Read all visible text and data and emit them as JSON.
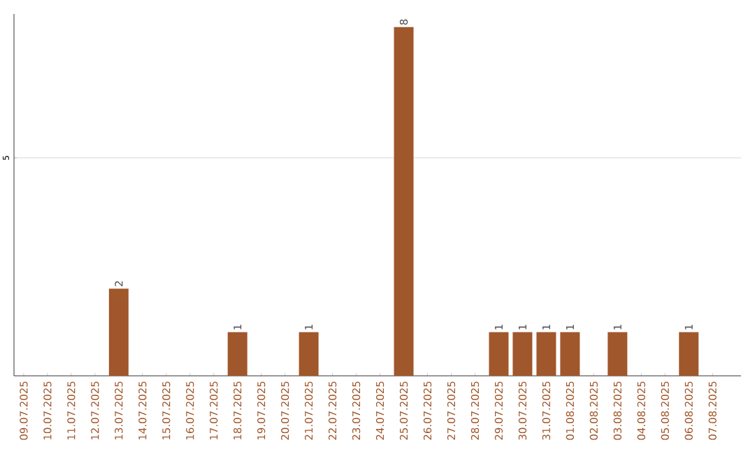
{
  "chart_data": {
    "type": "bar",
    "categories": [
      "09.07.2025",
      "10.07.2025",
      "11.07.2025",
      "12.07.2025",
      "13.07.2025",
      "14.07.2025",
      "15.07.2025",
      "16.07.2025",
      "17.07.2025",
      "18.07.2025",
      "19.07.2025",
      "20.07.2025",
      "21.07.2025",
      "22.07.2025",
      "23.07.2025",
      "24.07.2025",
      "25.07.2025",
      "26.07.2025",
      "27.07.2025",
      "28.07.2025",
      "29.07.2025",
      "30.07.2025",
      "31.07.2025",
      "01.08.2025",
      "02.08.2025",
      "03.08.2025",
      "04.08.2025",
      "05.08.2025",
      "06.08.2025",
      "07.08.2025"
    ],
    "values": [
      0,
      0,
      0,
      0,
      2,
      0,
      0,
      0,
      0,
      1,
      0,
      0,
      1,
      0,
      0,
      0,
      8,
      0,
      0,
      0,
      1,
      1,
      1,
      1,
      0,
      1,
      0,
      0,
      1,
      0
    ],
    "value_labels": [
      null,
      null,
      null,
      null,
      "2",
      null,
      null,
      null,
      null,
      "1",
      null,
      null,
      "1",
      null,
      null,
      null,
      "8",
      null,
      null,
      null,
      "1",
      "1",
      "1",
      "1",
      null,
      "1",
      null,
      null,
      "1",
      null
    ],
    "color": "#a0572b",
    "ylim": [
      0,
      8.3
    ],
    "yticks": [
      5
    ],
    "grid": "y"
  }
}
